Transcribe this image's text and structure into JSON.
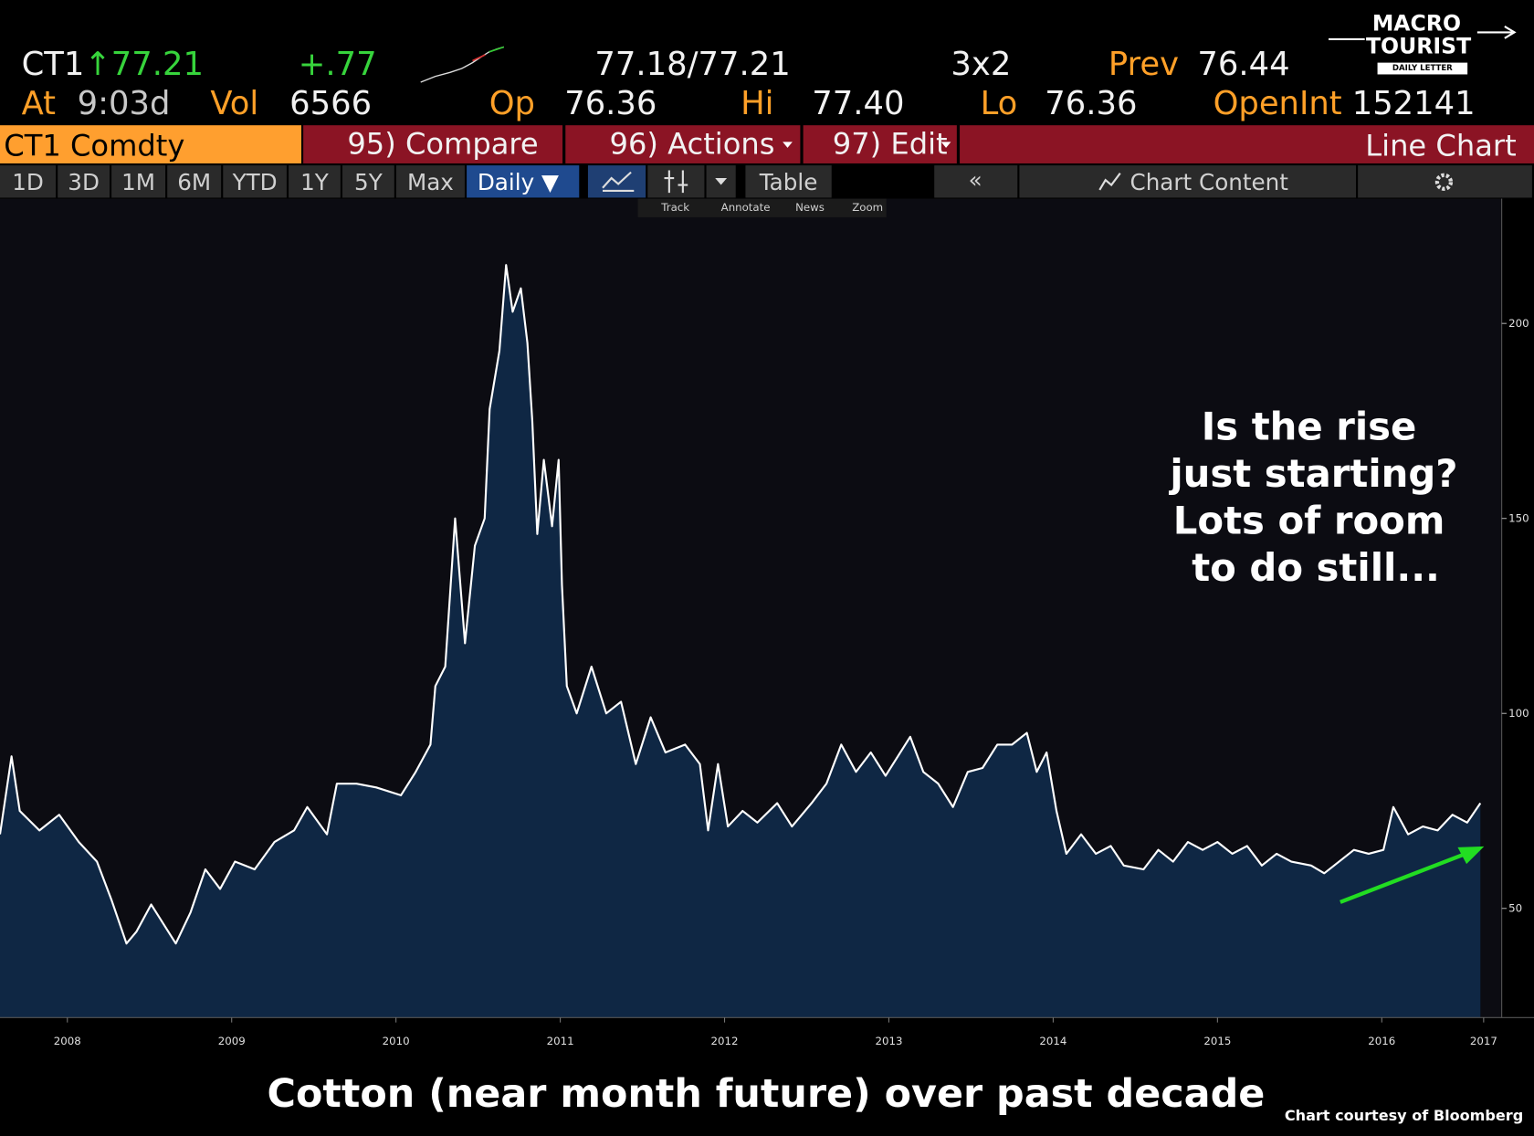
{
  "header": {
    "ticker": "CT1",
    "last": "↑77.21",
    "change": "+.77",
    "bid_ask": "77.18/77.21",
    "size": "3x2",
    "prev_label": "Prev",
    "prev": "76.44",
    "time_label": "At",
    "time": "9:03d",
    "vol_label": "Vol",
    "vol": "6566",
    "open_label": "Op",
    "open": "76.36",
    "high_label": "Hi",
    "high": "77.40",
    "low_label": "Lo",
    "low": "76.36",
    "oi_label": "OpenInt",
    "oi": "152141"
  },
  "logo": {
    "line1": "MACRO",
    "line2": "TOURIST",
    "tagline": "DAILY LETTER"
  },
  "menu": {
    "security": "CT1 Comdty",
    "compare": "95) Compare",
    "actions": "96) Actions",
    "edit": "97) Edit",
    "view": "Line Chart"
  },
  "toolbar": {
    "ranges": [
      "1D",
      "3D",
      "1M",
      "6M",
      "YTD",
      "1Y",
      "5Y",
      "Max"
    ],
    "frequency": "Daily ▼",
    "table": "Table",
    "collapse": "«",
    "content": "Chart Content"
  },
  "tools": [
    "Track",
    "Annotate",
    "News",
    "Zoom"
  ],
  "chart_data": {
    "type": "area",
    "annotation": [
      "Is the rise",
      "just starting?",
      "Lots of room",
      "to do still..."
    ],
    "x": [
      2008.09,
      2008.16,
      2008.21,
      2008.33,
      2008.45,
      2008.57,
      2008.68,
      2008.77,
      2008.86,
      2008.92,
      2009.01,
      2009.07,
      2009.16,
      2009.25,
      2009.34,
      2009.43,
      2009.52,
      2009.64,
      2009.76,
      2009.88,
      2009.96,
      2010.08,
      2010.14,
      2010.26,
      2010.38,
      2010.53,
      2010.62,
      2010.71,
      2010.74,
      2010.8,
      2010.86,
      2010.92,
      2010.98,
      2011.04,
      2011.07,
      2011.13,
      2011.17,
      2011.21,
      2011.26,
      2011.3,
      2011.33,
      2011.36,
      2011.4,
      2011.45,
      2011.49,
      2011.51,
      2011.54,
      2011.6,
      2011.69,
      2011.78,
      2011.87,
      2011.96,
      2012.05,
      2012.14,
      2012.26,
      2012.35,
      2012.4,
      2012.46,
      2012.52,
      2012.61,
      2012.7,
      2012.82,
      2012.91,
      2013.03,
      2013.12,
      2013.21,
      2013.3,
      2013.39,
      2013.48,
      2013.57,
      2013.63,
      2013.71,
      2013.8,
      2013.89,
      2013.98,
      2014.07,
      2014.16,
      2014.25,
      2014.34,
      2014.4,
      2014.46,
      2014.52,
      2014.58,
      2014.67,
      2014.76,
      2014.85,
      2014.93,
      2015.05,
      2015.14,
      2015.23,
      2015.32,
      2015.41,
      2015.5,
      2015.59,
      2015.68,
      2015.77,
      2015.86,
      2015.95,
      2016.07,
      2016.15,
      2016.24,
      2016.33,
      2016.42,
      2016.51,
      2016.57,
      2016.66,
      2016.75,
      2016.84,
      2016.93,
      2017.02,
      2017.1
    ],
    "values": [
      69,
      89,
      75,
      70,
      74,
      67,
      62,
      52,
      41,
      44,
      51,
      47,
      41,
      49,
      60,
      55,
      62,
      60,
      67,
      70,
      76,
      69,
      82,
      82,
      81,
      79,
      85,
      92,
      107,
      112,
      150,
      118,
      143,
      150,
      178,
      193,
      215,
      203,
      209,
      195,
      175,
      146,
      165,
      148,
      165,
      133,
      107,
      100,
      112,
      100,
      103,
      87,
      99,
      90,
      92,
      87,
      70,
      87,
      71,
      75,
      72,
      77,
      71,
      77,
      82,
      92,
      85,
      90,
      84,
      90,
      94,
      85,
      82,
      76,
      85,
      86,
      92,
      92,
      95,
      85,
      90,
      75,
      64,
      69,
      64,
      66,
      61,
      60,
      65,
      62,
      67,
      65,
      67,
      64,
      66,
      61,
      64,
      62,
      61,
      59,
      62,
      65,
      64,
      65,
      76,
      69,
      71,
      70,
      74,
      72,
      77
    ],
    "color": "#ffffff",
    "fill": "#0f2744",
    "xlim": [
      2008.09,
      2017.23
    ],
    "ylim": [
      22,
      232
    ],
    "xticks": [
      {
        "value": 2008.5,
        "label": "2008"
      },
      {
        "value": 2009.5,
        "label": "2009"
      },
      {
        "value": 2010.5,
        "label": "2010"
      },
      {
        "value": 2011.5,
        "label": "2011"
      },
      {
        "value": 2012.5,
        "label": "2012"
      },
      {
        "value": 2013.5,
        "label": "2013"
      },
      {
        "value": 2014.5,
        "label": "2014"
      },
      {
        "value": 2015.5,
        "label": "2015"
      },
      {
        "value": 2016.5,
        "label": "2016"
      },
      {
        "value": 2017.12,
        "label": "2017"
      }
    ],
    "yticks": [
      50,
      100,
      150,
      200
    ],
    "grid": false
  },
  "caption": "Cotton (near month future) over past decade",
  "credit": "Chart courtesy of Bloomberg"
}
